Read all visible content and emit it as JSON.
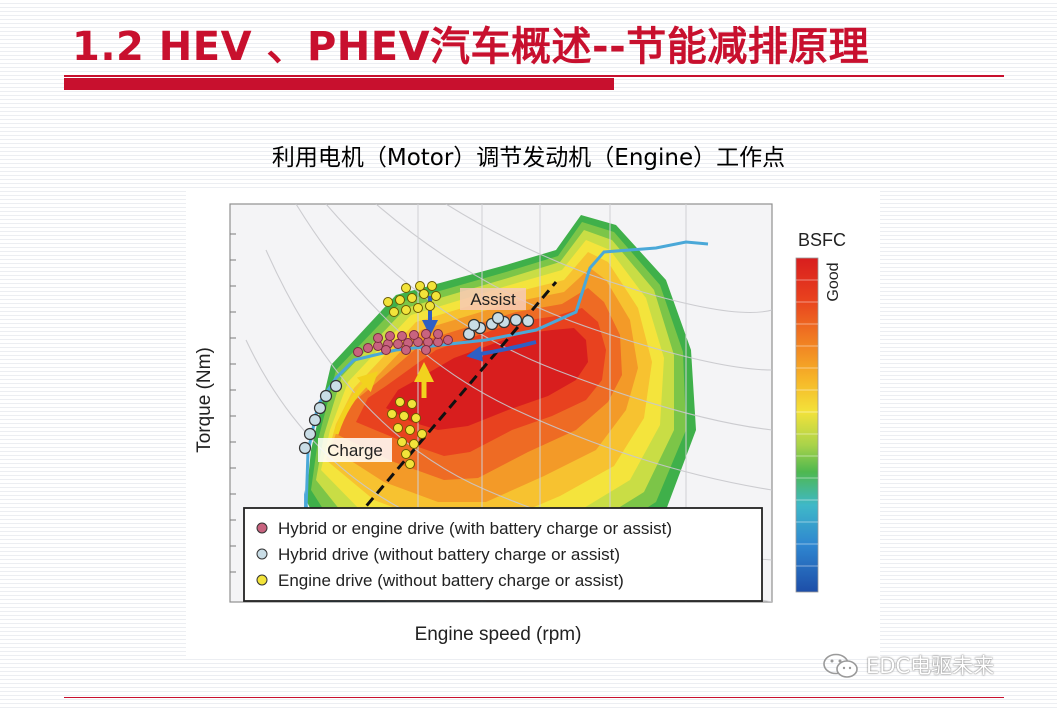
{
  "slide": {
    "title": "1.2 HEV 、PHEV汽车概述--节能减排原理",
    "subtitle": "利用电机（Motor）调节发动机（Engine）工作点"
  },
  "figure": {
    "y_axis_label": "Torque (Nm)",
    "x_axis_label": "Engine speed (rpm)",
    "colorbar_title": "BSFC",
    "colorbar_good": "Good",
    "annotation_assist": "Assist",
    "annotation_charge": "Charge",
    "legend": [
      {
        "label": "Hybrid or engine drive (with battery charge or assist)",
        "color": "#c8637f"
      },
      {
        "label": "Hybrid drive (without battery charge or assist)",
        "color": "#c9dde6"
      },
      {
        "label": "Engine drive (without battery charge or assist)",
        "color": "#f2e33a"
      }
    ]
  },
  "watermark": "EDC电驱未来",
  "colors": {
    "accent": "#c8102e"
  }
}
